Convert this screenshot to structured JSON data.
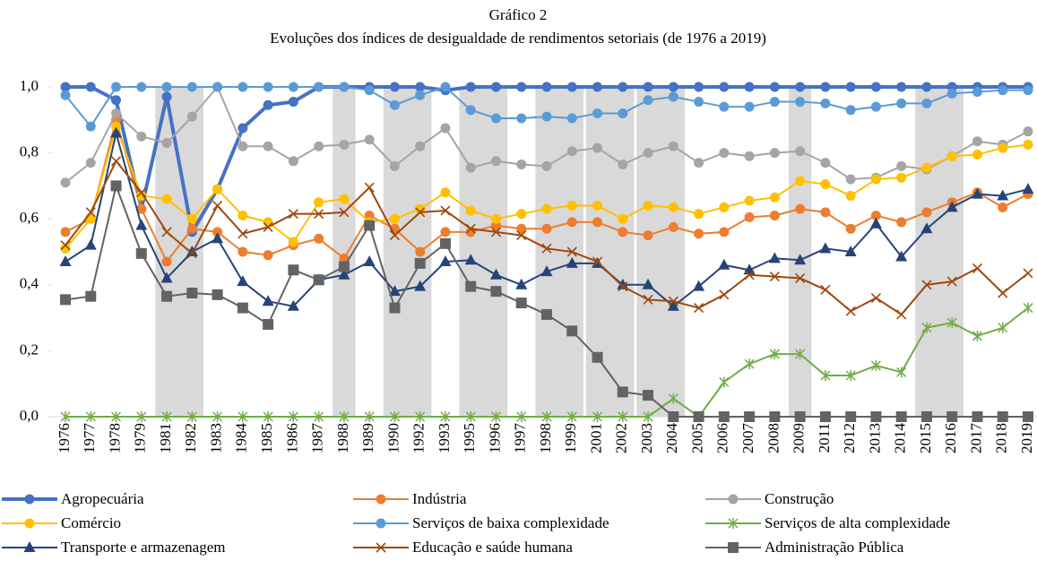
{
  "chart_data": {
    "type": "line",
    "title": "Gráfico 2",
    "subtitle": "Evoluções dos índices de desigualdade de rendimentos setoriais (de 1976 a 2019)",
    "categories": [
      "1976",
      "1977",
      "1978",
      "1979",
      "1981",
      "1982",
      "1983",
      "1984",
      "1985",
      "1986",
      "1987",
      "1988",
      "1989",
      "1990",
      "1992",
      "1993",
      "1995",
      "1996",
      "1997",
      "1998",
      "1999",
      "2001",
      "2002",
      "2003",
      "2004",
      "2005",
      "2006",
      "2007",
      "2008",
      "2009",
      "2011",
      "2012",
      "2013",
      "2014",
      "2015",
      "2016",
      "2017",
      "2018",
      "2019"
    ],
    "shaded_categories": [
      [
        "1981",
        "1982"
      ],
      [
        "1988",
        "1988"
      ],
      [
        "1990",
        "1992"
      ],
      [
        "1995",
        "1996"
      ],
      [
        "1998",
        "1999"
      ],
      [
        "2001",
        "2002"
      ],
      [
        "2003",
        "2004"
      ],
      [
        "2009",
        "2009"
      ],
      [
        "2015",
        "2016"
      ]
    ],
    "shade_color": "#d9d9d9",
    "ylim": [
      0,
      1
    ],
    "yticks": [
      {
        "value": 0,
        "label": "0,0"
      },
      {
        "value": 0.2,
        "label": "0,2"
      },
      {
        "value": 0.4,
        "label": "0,4"
      },
      {
        "value": 0.6,
        "label": "0,6"
      },
      {
        "value": 0.8,
        "label": "0,8"
      },
      {
        "value": 1,
        "label": "1,0"
      }
    ],
    "series": [
      {
        "name": "Agropecuária",
        "color": "#4472c4",
        "marker": "circle",
        "width": 4,
        "values": [
          1,
          1,
          0.96,
          0.63,
          0.97,
          0.56,
          0.69,
          0.875,
          0.945,
          0.955,
          1,
          1,
          1,
          1,
          1,
          0.99,
          1,
          1,
          1,
          1,
          1,
          1,
          1,
          1,
          1,
          1,
          1,
          1,
          1,
          1,
          1,
          1,
          1,
          1,
          1,
          1,
          1,
          1,
          1
        ]
      },
      {
        "name": "Indústria",
        "color": "#ed7d31",
        "marker": "circle",
        "width": 2,
        "values": [
          0.56,
          0.6,
          0.9,
          0.63,
          0.47,
          0.57,
          0.56,
          0.5,
          0.49,
          0.52,
          0.54,
          0.48,
          0.61,
          0.57,
          0.5,
          0.56,
          0.56,
          0.58,
          0.57,
          0.57,
          0.59,
          0.59,
          0.56,
          0.55,
          0.575,
          0.555,
          0.56,
          0.605,
          0.61,
          0.63,
          0.62,
          0.57,
          0.61,
          0.59,
          0.62,
          0.65,
          0.68,
          0.635,
          0.675
        ]
      },
      {
        "name": "Construção",
        "color": "#a5a5a5",
        "marker": "circle",
        "width": 2,
        "values": [
          0.71,
          0.77,
          0.92,
          0.85,
          0.83,
          0.91,
          1,
          0.82,
          0.82,
          0.775,
          0.82,
          0.825,
          0.84,
          0.76,
          0.82,
          0.875,
          0.755,
          0.775,
          0.765,
          0.76,
          0.805,
          0.815,
          0.765,
          0.8,
          0.82,
          0.77,
          0.8,
          0.79,
          0.8,
          0.805,
          0.77,
          0.72,
          0.725,
          0.76,
          0.75,
          0.79,
          0.835,
          0.825,
          0.865
        ]
      },
      {
        "name": "Comércio",
        "color": "#ffc000",
        "marker": "circle",
        "width": 2,
        "values": [
          0.51,
          0.6,
          0.88,
          0.67,
          0.66,
          0.6,
          0.69,
          0.61,
          0.59,
          0.53,
          0.65,
          0.66,
          0.59,
          0.6,
          0.63,
          0.68,
          0.625,
          0.6,
          0.615,
          0.63,
          0.64,
          0.64,
          0.6,
          0.64,
          0.635,
          0.615,
          0.635,
          0.655,
          0.665,
          0.715,
          0.705,
          0.67,
          0.72,
          0.725,
          0.755,
          0.79,
          0.795,
          0.815,
          0.825
        ]
      },
      {
        "name": "Serviços de baixa complexidade",
        "color": "#5b9bd5",
        "marker": "circle",
        "width": 2,
        "values": [
          0.975,
          0.88,
          1,
          1,
          1,
          1,
          1,
          1,
          1,
          1,
          1,
          1,
          0.99,
          0.945,
          0.975,
          1,
          0.93,
          0.905,
          0.905,
          0.91,
          0.905,
          0.92,
          0.92,
          0.96,
          0.97,
          0.955,
          0.94,
          0.94,
          0.955,
          0.955,
          0.95,
          0.93,
          0.94,
          0.95,
          0.95,
          0.98,
          0.985,
          0.99,
          0.99
        ]
      },
      {
        "name": "Serviços de alta complexidade",
        "color": "#70ad47",
        "marker": "star",
        "width": 2,
        "values": [
          0,
          0,
          0,
          0,
          0,
          0,
          0,
          0,
          0,
          0,
          0,
          0,
          0,
          0,
          0,
          0,
          0,
          0,
          0,
          0,
          0,
          0,
          0,
          0,
          0.055,
          0,
          0.105,
          0.16,
          0.19,
          0.19,
          0.125,
          0.125,
          0.155,
          0.135,
          0.27,
          0.285,
          0.245,
          0.27,
          0.33
        ]
      },
      {
        "name": "Transporte e armazenagem",
        "color": "#264478",
        "marker": "triangle",
        "width": 2,
        "values": [
          0.47,
          0.52,
          0.86,
          0.58,
          0.42,
          0.5,
          0.54,
          0.41,
          0.35,
          0.335,
          0.415,
          0.43,
          0.47,
          0.38,
          0.395,
          0.47,
          0.475,
          0.43,
          0.4,
          0.44,
          0.465,
          0.465,
          0.4,
          0.4,
          0.335,
          0.395,
          0.46,
          0.445,
          0.48,
          0.475,
          0.51,
          0.5,
          0.585,
          0.485,
          0.57,
          0.635,
          0.675,
          0.67,
          0.69
        ]
      },
      {
        "name": "Educação e saúde humana",
        "color": "#9e480e",
        "marker": "x",
        "width": 2,
        "values": [
          0.52,
          0.62,
          0.775,
          0.68,
          0.56,
          0.495,
          0.64,
          0.555,
          0.575,
          0.615,
          0.615,
          0.62,
          0.695,
          0.55,
          0.62,
          0.625,
          0.57,
          0.56,
          0.55,
          0.51,
          0.5,
          0.47,
          0.395,
          0.355,
          0.35,
          0.33,
          0.37,
          0.43,
          0.425,
          0.42,
          0.385,
          0.32,
          0.36,
          0.31,
          0.4,
          0.41,
          0.45,
          0.375,
          0.435
        ]
      },
      {
        "name": "Administração Pública",
        "color": "#636363",
        "marker": "square",
        "width": 2,
        "values": [
          0.355,
          0.365,
          0.7,
          0.495,
          0.365,
          0.375,
          0.37,
          0.33,
          0.28,
          0.445,
          0.415,
          0.455,
          0.58,
          0.33,
          0.465,
          0.525,
          0.395,
          0.38,
          0.345,
          0.31,
          0.26,
          0.18,
          0.075,
          0.065,
          0,
          0,
          0,
          0,
          0,
          0,
          0,
          0,
          0,
          0,
          0,
          0,
          0,
          0,
          0
        ]
      }
    ]
  }
}
